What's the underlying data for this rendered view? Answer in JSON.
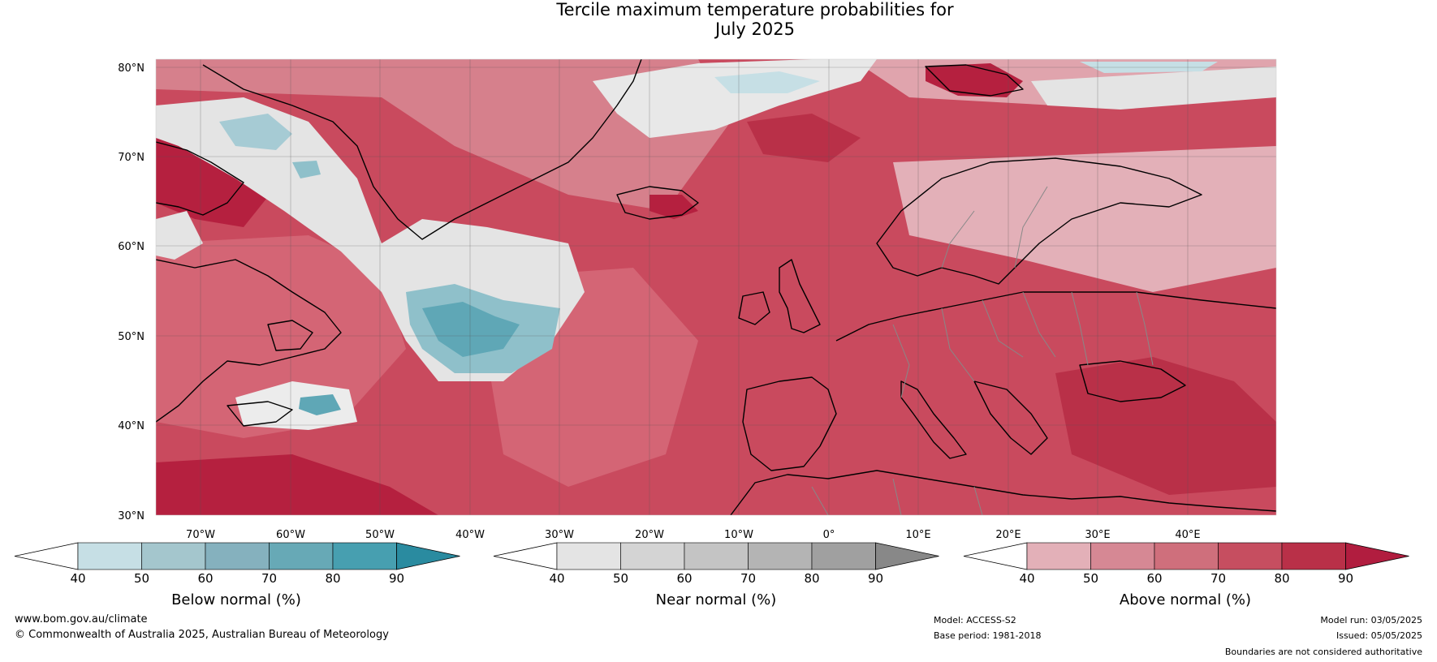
{
  "title": "Tercile maximum temperature probabilities for\nJuly 2025",
  "map": {
    "lat_labels": [
      "80°N",
      "70°N",
      "60°N",
      "50°N",
      "40°N",
      "30°N"
    ],
    "lon_labels": [
      "70°W",
      "60°W",
      "50°W",
      "40°W",
      "30°W",
      "20°W",
      "10°W",
      "0°",
      "10°E",
      "20°E",
      "30°E",
      "40°E"
    ],
    "colors": {
      "ocean_above": "#c94a5e",
      "land_above": "#d46575",
      "strong_above": "#b5203f",
      "light_above": "#e3b0b8",
      "near_normal": "#e4e4e4",
      "below_light": "#c6dfe5",
      "below_mid": "#62a9b6",
      "coast": "#000000",
      "border": "#888888",
      "grid": "#555555"
    }
  },
  "colorbars": [
    {
      "name": "below",
      "title": "Below normal (%)",
      "ticks": [
        "40",
        "50",
        "60",
        "70",
        "80",
        "90"
      ],
      "colors": [
        "#ffffff",
        "#c6dfe5",
        "#a4c6cd",
        "#85b1be",
        "#67a9b6",
        "#479fb0",
        "#2a8ba0"
      ]
    },
    {
      "name": "near",
      "title": "Near normal (%)",
      "ticks": [
        "40",
        "50",
        "60",
        "70",
        "80",
        "90"
      ],
      "colors": [
        "#ffffff",
        "#e4e4e4",
        "#d4d4d4",
        "#c4c4c4",
        "#b4b4b4",
        "#a0a0a0",
        "#888888"
      ]
    },
    {
      "name": "above",
      "title": "Above normal (%)",
      "ticks": [
        "40",
        "50",
        "60",
        "70",
        "80",
        "90"
      ],
      "colors": [
        "#ffffff",
        "#e3b0b8",
        "#d68894",
        "#cf6f7c",
        "#c64e60",
        "#b93048",
        "#b11d3f"
      ]
    }
  ],
  "footer": {
    "website": "www.bom.gov.au/climate",
    "copyright": "© Commonwealth of Australia 2025, Australian Bureau of Meteorology",
    "model": "Model: ACCESS-S2",
    "base_period": "Base period: 1981-2018",
    "model_run": "Model run: 03/05/2025",
    "issued": "Issued: 05/05/2025",
    "disclaimer": "Boundaries are not considered authoritative"
  }
}
